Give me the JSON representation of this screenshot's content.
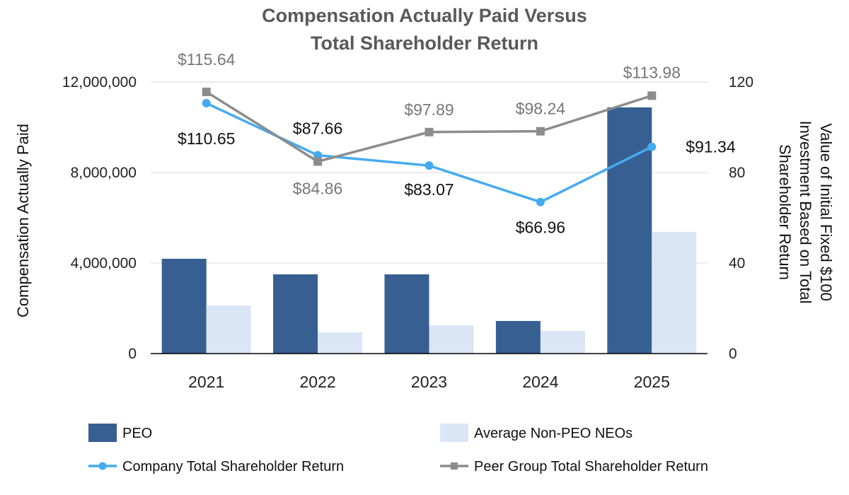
{
  "chart_data": {
    "type": "bar",
    "title": "Compensation Actually Paid Versus Total Shareholder Return",
    "title_lines": [
      "Compensation Actually Paid Versus",
      "Total Shareholder Return"
    ],
    "categories": [
      "2021",
      "2022",
      "2023",
      "2024",
      "2025"
    ],
    "ylabel": "Compensation Actually Paid",
    "y2label_lines": [
      "Value of Initial Fixed $100",
      "Investment Based on Total",
      "Shareholder Return"
    ],
    "ylim": [
      0,
      12000000
    ],
    "y2lim": [
      0,
      120
    ],
    "yticks": [
      "0",
      "4,000,000",
      "8,000,000",
      "12,000,000"
    ],
    "yticks_values": [
      0,
      4000000,
      8000000,
      12000000
    ],
    "y2ticks": [
      "0",
      "40",
      "80",
      "120"
    ],
    "y2ticks_values": [
      0,
      40,
      80,
      120
    ],
    "grid": true,
    "legend_position": "bottom",
    "series": [
      {
        "name": "PEO",
        "type": "bar",
        "axis": "left",
        "color": "#375f92",
        "values": [
          4190000,
          3500000,
          3500000,
          1440000,
          10880000
        ]
      },
      {
        "name": "Average Non-PEO NEOs",
        "type": "bar",
        "axis": "left",
        "color": "#dae6f5",
        "values": [
          2120000,
          940000,
          1250000,
          1000000,
          5380000
        ]
      },
      {
        "name": "Company Total Shareholder Return",
        "type": "line",
        "axis": "right",
        "color": "#45abf0",
        "marker": "circle",
        "values": [
          110.65,
          87.66,
          83.07,
          66.96,
          91.34
        ],
        "labels": [
          "$110.65",
          "$87.66",
          "$83.07",
          "$66.96",
          "$91.34"
        ]
      },
      {
        "name": "Peer Group Total Shareholder Return",
        "type": "line",
        "axis": "right",
        "color": "#8c8c8c",
        "marker": "square",
        "values": [
          115.64,
          84.86,
          97.89,
          98.24,
          113.98
        ],
        "labels": [
          "$115.64",
          "$84.86",
          "$97.89",
          "$98.24",
          "$113.98"
        ]
      }
    ]
  }
}
